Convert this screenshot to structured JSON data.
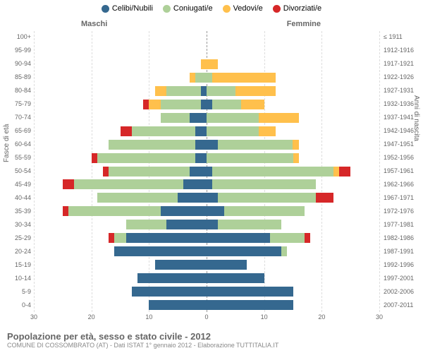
{
  "legend": [
    {
      "label": "Celibi/Nubili",
      "color": "#35688f"
    },
    {
      "label": "Coniugati/e",
      "color": "#aed099"
    },
    {
      "label": "Vedovi/e",
      "color": "#ffc04c"
    },
    {
      "label": "Divorziati/e",
      "color": "#d62728"
    }
  ],
  "gender": {
    "left": "Maschi",
    "right": "Femmine"
  },
  "y_left_title": "Fasce di età",
  "y_right_title": "Anni di nascita",
  "x_ticks": [
    30,
    20,
    10,
    0,
    10,
    20,
    30
  ],
  "x_max": 30,
  "colors": {
    "celibi": "#35688f",
    "coniugati": "#aed099",
    "vedovi": "#ffc04c",
    "divorziati": "#d62728",
    "grid": "#dddddd",
    "center": "#999999"
  },
  "rows": [
    {
      "age": "100+",
      "birth": "≤ 1911",
      "m": {
        "c": 0,
        "co": 0,
        "v": 0,
        "d": 0
      },
      "f": {
        "c": 0,
        "co": 0,
        "v": 0,
        "d": 0
      }
    },
    {
      "age": "95-99",
      "birth": "1912-1916",
      "m": {
        "c": 0,
        "co": 0,
        "v": 0,
        "d": 0
      },
      "f": {
        "c": 0,
        "co": 0,
        "v": 0,
        "d": 0
      }
    },
    {
      "age": "90-94",
      "birth": "1917-1921",
      "m": {
        "c": 0,
        "co": 0,
        "v": 1,
        "d": 0
      },
      "f": {
        "c": 0,
        "co": 0,
        "v": 2,
        "d": 0
      }
    },
    {
      "age": "85-89",
      "birth": "1922-1926",
      "m": {
        "c": 0,
        "co": 2,
        "v": 1,
        "d": 0
      },
      "f": {
        "c": 0,
        "co": 1,
        "v": 11,
        "d": 0
      }
    },
    {
      "age": "80-84",
      "birth": "1927-1931",
      "m": {
        "c": 1,
        "co": 6,
        "v": 2,
        "d": 0
      },
      "f": {
        "c": 0,
        "co": 5,
        "v": 7,
        "d": 0
      }
    },
    {
      "age": "75-79",
      "birth": "1932-1936",
      "m": {
        "c": 1,
        "co": 7,
        "v": 2,
        "d": 1
      },
      "f": {
        "c": 1,
        "co": 5,
        "v": 4,
        "d": 0
      }
    },
    {
      "age": "70-74",
      "birth": "1937-1941",
      "m": {
        "c": 3,
        "co": 5,
        "v": 0,
        "d": 0
      },
      "f": {
        "c": 0,
        "co": 9,
        "v": 7,
        "d": 0
      }
    },
    {
      "age": "65-69",
      "birth": "1942-1946",
      "m": {
        "c": 2,
        "co": 11,
        "v": 0,
        "d": 2
      },
      "f": {
        "c": 0,
        "co": 9,
        "v": 3,
        "d": 0
      }
    },
    {
      "age": "60-64",
      "birth": "1947-1951",
      "m": {
        "c": 2,
        "co": 15,
        "v": 0,
        "d": 0
      },
      "f": {
        "c": 2,
        "co": 13,
        "v": 1,
        "d": 0
      }
    },
    {
      "age": "55-59",
      "birth": "1952-1956",
      "m": {
        "c": 2,
        "co": 17,
        "v": 0,
        "d": 1
      },
      "f": {
        "c": 0,
        "co": 15,
        "v": 1,
        "d": 0
      }
    },
    {
      "age": "50-54",
      "birth": "1957-1961",
      "m": {
        "c": 3,
        "co": 14,
        "v": 0,
        "d": 1
      },
      "f": {
        "c": 1,
        "co": 21,
        "v": 1,
        "d": 2
      }
    },
    {
      "age": "45-49",
      "birth": "1962-1966",
      "m": {
        "c": 4,
        "co": 19,
        "v": 0,
        "d": 2
      },
      "f": {
        "c": 1,
        "co": 18,
        "v": 0,
        "d": 0
      }
    },
    {
      "age": "40-44",
      "birth": "1967-1971",
      "m": {
        "c": 5,
        "co": 14,
        "v": 0,
        "d": 0
      },
      "f": {
        "c": 2,
        "co": 17,
        "v": 0,
        "d": 3
      }
    },
    {
      "age": "35-39",
      "birth": "1972-1976",
      "m": {
        "c": 8,
        "co": 16,
        "v": 0,
        "d": 1
      },
      "f": {
        "c": 3,
        "co": 14,
        "v": 0,
        "d": 0
      }
    },
    {
      "age": "30-34",
      "birth": "1977-1981",
      "m": {
        "c": 7,
        "co": 7,
        "v": 0,
        "d": 0
      },
      "f": {
        "c": 2,
        "co": 11,
        "v": 0,
        "d": 0
      }
    },
    {
      "age": "25-29",
      "birth": "1982-1986",
      "m": {
        "c": 14,
        "co": 2,
        "v": 0,
        "d": 1
      },
      "f": {
        "c": 11,
        "co": 6,
        "v": 0,
        "d": 1
      }
    },
    {
      "age": "20-24",
      "birth": "1987-1991",
      "m": {
        "c": 16,
        "co": 0,
        "v": 0,
        "d": 0
      },
      "f": {
        "c": 13,
        "co": 1,
        "v": 0,
        "d": 0
      }
    },
    {
      "age": "15-19",
      "birth": "1992-1996",
      "m": {
        "c": 9,
        "co": 0,
        "v": 0,
        "d": 0
      },
      "f": {
        "c": 7,
        "co": 0,
        "v": 0,
        "d": 0
      }
    },
    {
      "age": "10-14",
      "birth": "1997-2001",
      "m": {
        "c": 12,
        "co": 0,
        "v": 0,
        "d": 0
      },
      "f": {
        "c": 10,
        "co": 0,
        "v": 0,
        "d": 0
      }
    },
    {
      "age": "5-9",
      "birth": "2002-2006",
      "m": {
        "c": 13,
        "co": 0,
        "v": 0,
        "d": 0
      },
      "f": {
        "c": 15,
        "co": 0,
        "v": 0,
        "d": 0
      }
    },
    {
      "age": "0-4",
      "birth": "2007-2011",
      "m": {
        "c": 10,
        "co": 0,
        "v": 0,
        "d": 0
      },
      "f": {
        "c": 15,
        "co": 0,
        "v": 0,
        "d": 0
      }
    }
  ],
  "footer": {
    "title": "Popolazione per età, sesso e stato civile - 2012",
    "sub": "COMUNE DI COSSOMBRATO (AT) - Dati ISTAT 1° gennaio 2012 - Elaborazione TUTTITALIA.IT"
  }
}
